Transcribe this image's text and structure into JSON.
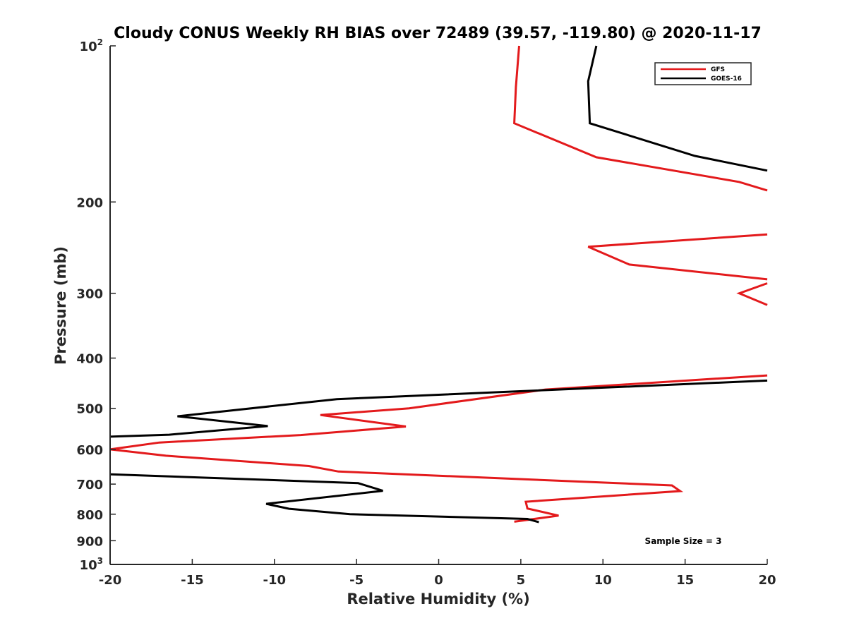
{
  "chart_data": {
    "type": "line",
    "title": "Cloudy CONUS Weekly RH BIAS over 72489 (39.57, -119.80) @ 2020-11-17",
    "xlabel": "Relative Humidity (%)",
    "ylabel": "Pressure (mb)",
    "xlim": [
      -20,
      20
    ],
    "ylim": [
      100,
      1000
    ],
    "yscale": "log",
    "y_reversed": true,
    "grid": false,
    "legend_position": "top-right",
    "x_ticks": [
      -20,
      -15,
      -10,
      -5,
      0,
      5,
      10,
      15,
      20
    ],
    "x_tick_labels": [
      "-20",
      "-15",
      "-10",
      "-5",
      "0",
      "5",
      "10",
      "15",
      "20"
    ],
    "y_ticks": [
      {
        "value": 100,
        "label": "10",
        "exp": "2"
      },
      {
        "value": 200,
        "label": "200",
        "exp": ""
      },
      {
        "value": 300,
        "label": "300",
        "exp": ""
      },
      {
        "value": 400,
        "label": "400",
        "exp": ""
      },
      {
        "value": 500,
        "label": "500",
        "exp": ""
      },
      {
        "value": 600,
        "label": "600",
        "exp": ""
      },
      {
        "value": 700,
        "label": "700",
        "exp": ""
      },
      {
        "value": 800,
        "label": "800",
        "exp": ""
      },
      {
        "value": 900,
        "label": "900",
        "exp": ""
      },
      {
        "value": 1000,
        "label": "10",
        "exp": "3"
      }
    ],
    "series": [
      {
        "name": "GFS",
        "color": "#e31a1c",
        "points": [
          [
            4.9,
            100
          ],
          [
            4.7,
            120
          ],
          [
            4.6,
            141
          ],
          [
            9.6,
            164
          ],
          [
            18.3,
            183
          ],
          [
            20,
            190
          ],
          [
            null,
            null
          ],
          [
            20,
            231
          ],
          [
            9.1,
            244
          ],
          [
            11.6,
            264
          ],
          [
            20,
            282
          ],
          [
            null,
            null
          ],
          [
            20,
            287
          ],
          [
            18.3,
            300
          ],
          [
            20,
            316
          ],
          [
            null,
            null
          ],
          [
            20,
            432
          ],
          [
            6.5,
            460
          ],
          [
            -1.8,
            500
          ],
          [
            -7.2,
            515
          ],
          [
            -2.0,
            542
          ],
          [
            -8.4,
            563
          ],
          [
            -17.0,
            582
          ],
          [
            -20,
            600
          ],
          [
            -16.6,
            617
          ],
          [
            -7.9,
            646
          ],
          [
            -6.1,
            662
          ],
          [
            14.2,
            704
          ],
          [
            14.7,
            722
          ],
          [
            5.3,
            757
          ],
          [
            5.4,
            780
          ],
          [
            7.3,
            805
          ],
          [
            4.6,
            827
          ]
        ]
      },
      {
        "name": "GOES-16",
        "color": "#000000",
        "points": [
          [
            9.6,
            100
          ],
          [
            9.1,
            117
          ],
          [
            9.2,
            141
          ],
          [
            15.6,
            163
          ],
          [
            20,
            174
          ],
          [
            null,
            null
          ],
          [
            20,
            442
          ],
          [
            -6.2,
            480
          ],
          [
            -15.9,
            518
          ],
          [
            -10.4,
            541
          ],
          [
            -16.4,
            562
          ],
          [
            -20,
            567
          ],
          [
            null,
            null
          ],
          [
            -20,
            670
          ],
          [
            -4.9,
            697
          ],
          [
            -3.4,
            721
          ],
          [
            -10.5,
            764
          ],
          [
            -9.1,
            781
          ],
          [
            -5.4,
            800
          ],
          [
            5.4,
            817
          ],
          [
            6.1,
            829
          ]
        ]
      }
    ],
    "annotation": "Sample Size = 3"
  }
}
